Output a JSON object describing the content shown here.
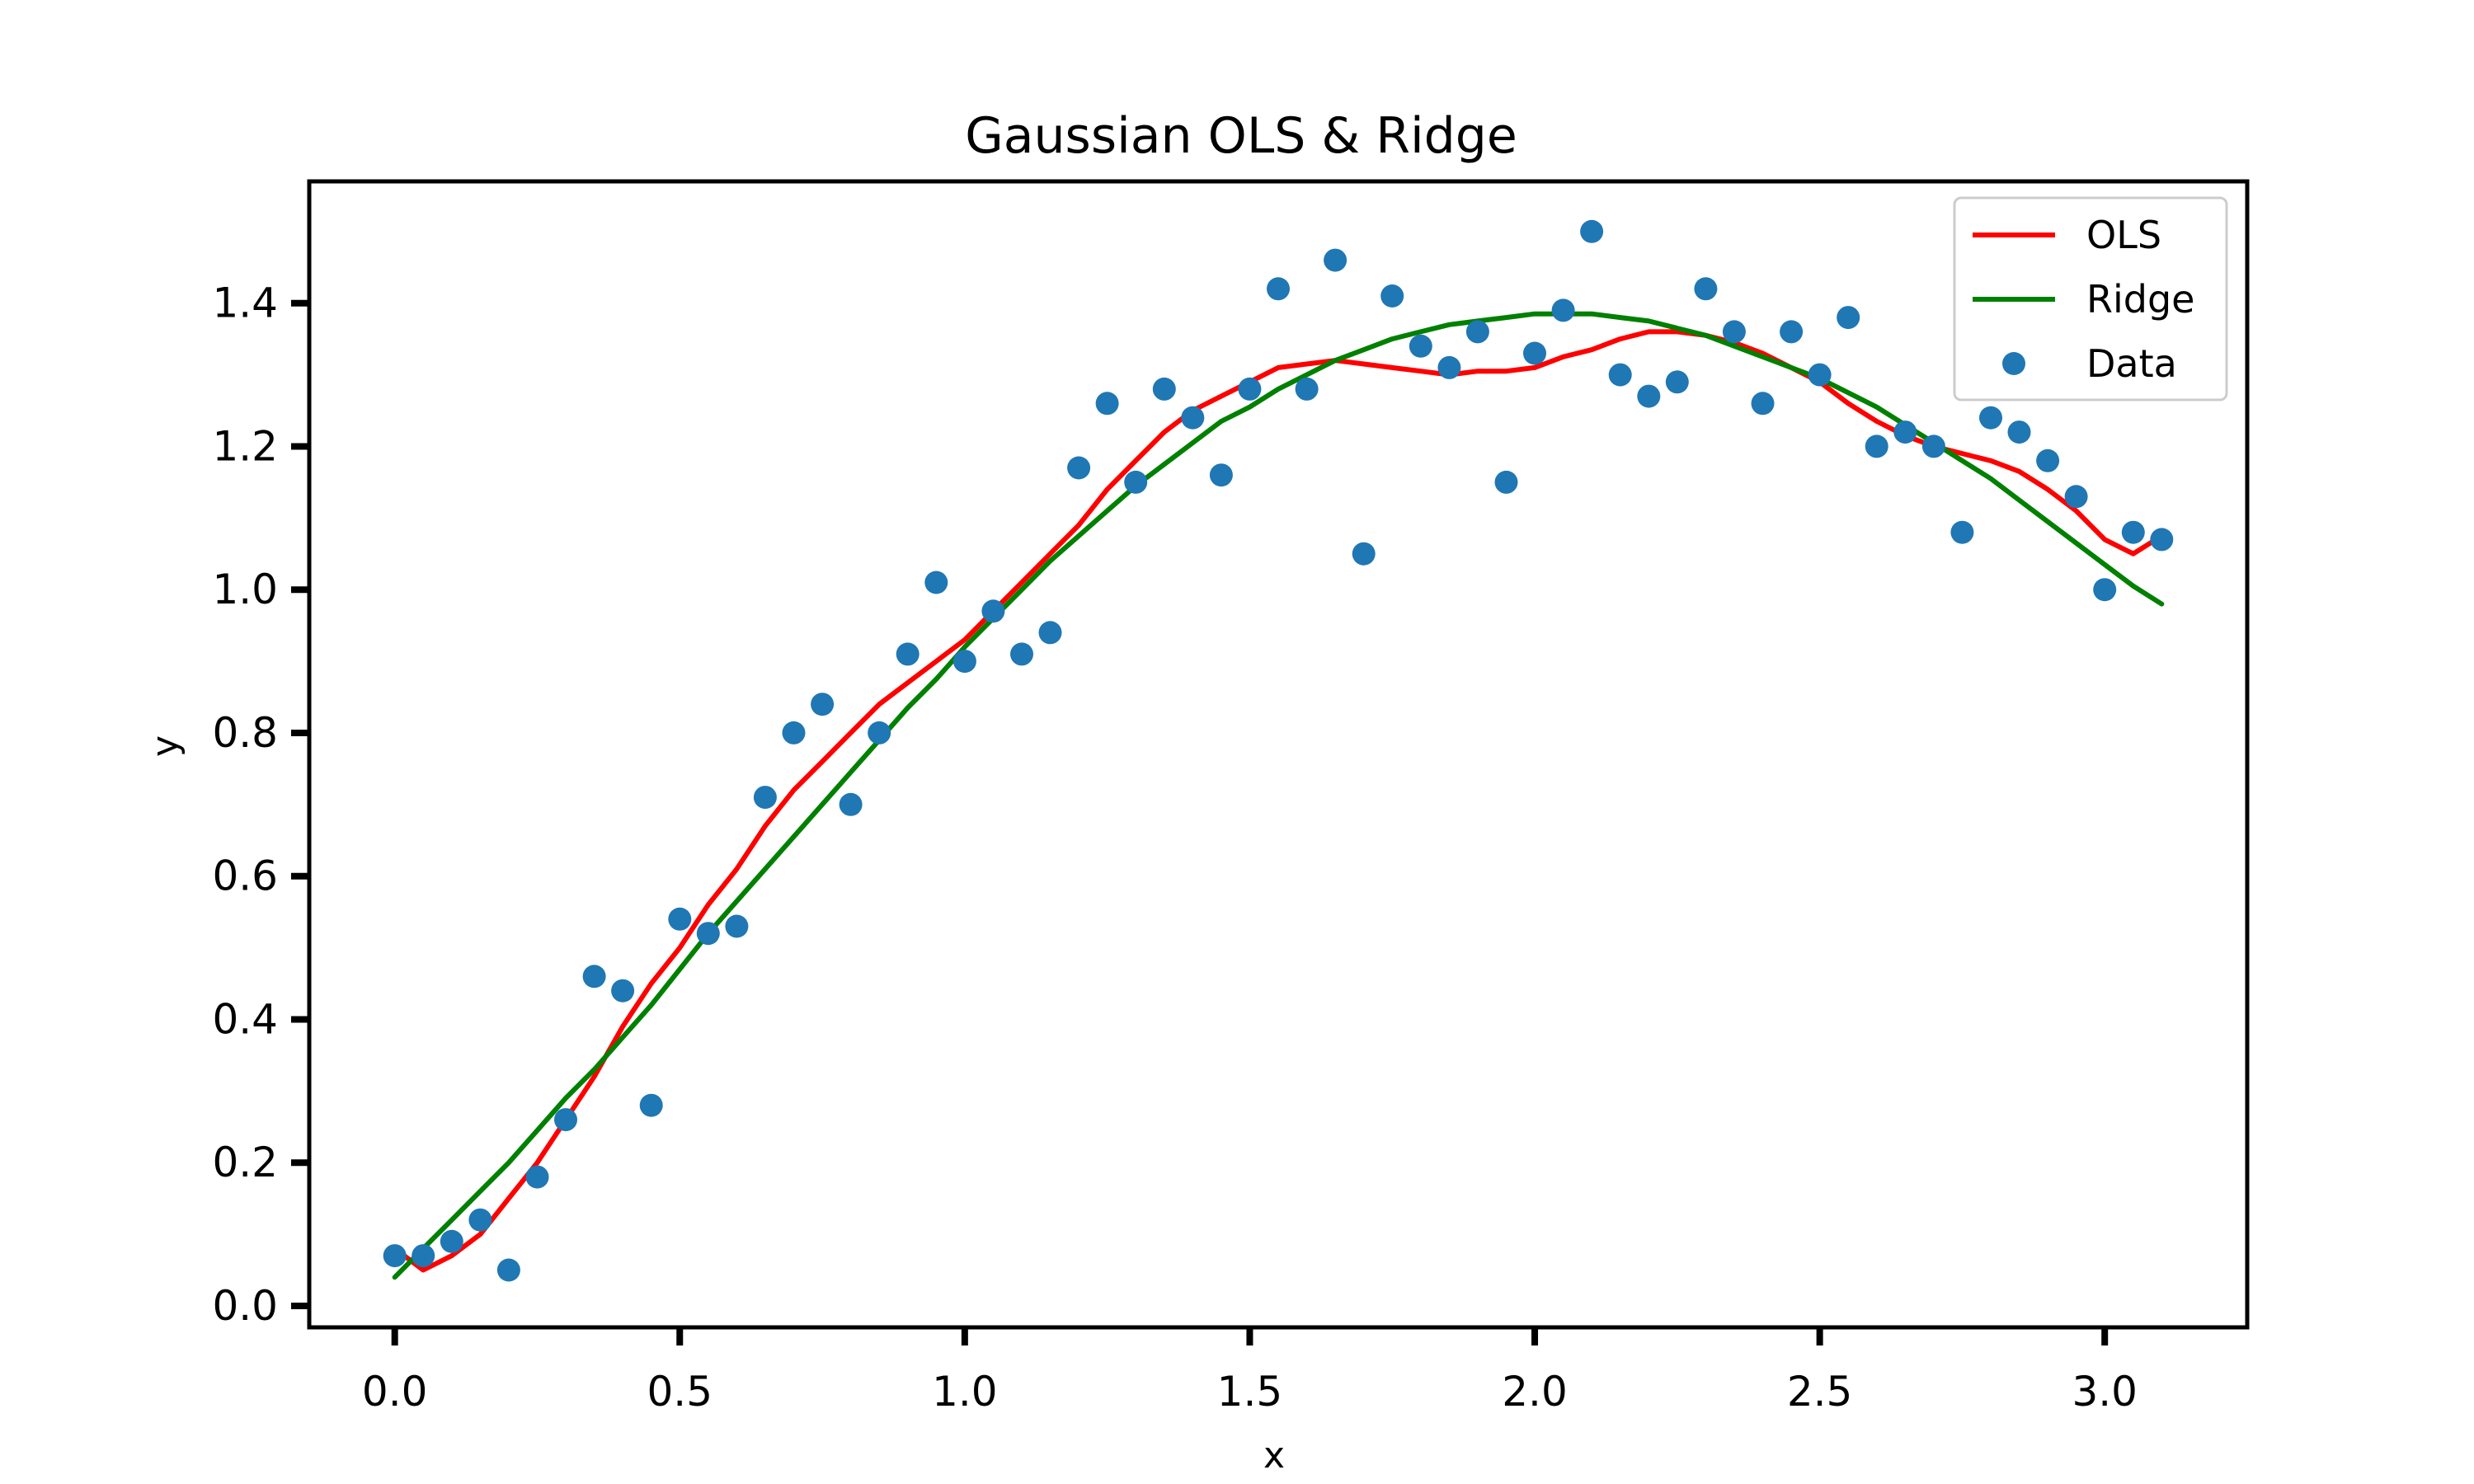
{
  "chart_data": {
    "type": "line",
    "title": "Gaussian OLS & Ridge",
    "xlabel": "x",
    "ylabel": "y",
    "xlim": [
      -0.15,
      3.25
    ],
    "ylim": [
      -0.03,
      1.57
    ],
    "xticks": [
      0.0,
      0.5,
      1.0,
      1.5,
      2.0,
      2.5,
      3.0
    ],
    "xtick_labels": [
      "0.0",
      "0.5",
      "1.0",
      "1.5",
      "2.0",
      "2.5",
      "3.0"
    ],
    "yticks": [
      0.0,
      0.2,
      0.4,
      0.6,
      0.8,
      1.0,
      1.2,
      1.4
    ],
    "ytick_labels": [
      "0.0",
      "0.2",
      "0.4",
      "0.6",
      "0.8",
      "1.0",
      "1.2",
      "1.4"
    ],
    "grid": false,
    "legend_position": "top-right",
    "series": [
      {
        "name": "OLS",
        "kind": "line",
        "color": "#ff0000",
        "x": [
          0.0,
          0.05,
          0.1,
          0.15,
          0.2,
          0.25,
          0.3,
          0.35,
          0.4,
          0.45,
          0.5,
          0.55,
          0.6,
          0.65,
          0.7,
          0.75,
          0.8,
          0.85,
          0.9,
          0.95,
          1.0,
          1.05,
          1.1,
          1.15,
          1.2,
          1.25,
          1.3,
          1.35,
          1.4,
          1.45,
          1.5,
          1.55,
          1.6,
          1.65,
          1.7,
          1.75,
          1.8,
          1.85,
          1.9,
          1.95,
          2.0,
          2.05,
          2.1,
          2.15,
          2.2,
          2.25,
          2.3,
          2.35,
          2.4,
          2.45,
          2.5,
          2.55,
          2.6,
          2.65,
          2.7,
          2.75,
          2.8,
          2.85,
          2.9,
          2.95,
          3.0,
          3.05,
          3.1
        ],
        "y": [
          0.08,
          0.05,
          0.07,
          0.1,
          0.15,
          0.2,
          0.26,
          0.32,
          0.39,
          0.45,
          0.5,
          0.56,
          0.61,
          0.67,
          0.72,
          0.76,
          0.8,
          0.84,
          0.87,
          0.9,
          0.93,
          0.97,
          1.01,
          1.05,
          1.09,
          1.14,
          1.18,
          1.22,
          1.25,
          1.27,
          1.29,
          1.31,
          1.315,
          1.32,
          1.315,
          1.31,
          1.305,
          1.3,
          1.305,
          1.305,
          1.31,
          1.325,
          1.335,
          1.35,
          1.36,
          1.36,
          1.355,
          1.345,
          1.33,
          1.31,
          1.29,
          1.26,
          1.235,
          1.215,
          1.2,
          1.19,
          1.18,
          1.165,
          1.14,
          1.11,
          1.07,
          1.05,
          1.075
        ]
      },
      {
        "name": "Ridge",
        "kind": "line",
        "color": "#008000",
        "x": [
          0.0,
          0.05,
          0.1,
          0.15,
          0.2,
          0.25,
          0.3,
          0.35,
          0.4,
          0.45,
          0.5,
          0.55,
          0.6,
          0.65,
          0.7,
          0.75,
          0.8,
          0.85,
          0.9,
          0.95,
          1.0,
          1.05,
          1.1,
          1.15,
          1.2,
          1.25,
          1.3,
          1.35,
          1.4,
          1.45,
          1.5,
          1.55,
          1.6,
          1.65,
          1.7,
          1.75,
          1.8,
          1.85,
          1.9,
          1.95,
          2.0,
          2.05,
          2.1,
          2.15,
          2.2,
          2.25,
          2.3,
          2.35,
          2.4,
          2.45,
          2.5,
          2.55,
          2.6,
          2.65,
          2.7,
          2.75,
          2.8,
          2.85,
          2.9,
          2.95,
          3.0,
          3.05,
          3.1
        ],
        "y": [
          0.04,
          0.08,
          0.12,
          0.16,
          0.2,
          0.245,
          0.29,
          0.33,
          0.375,
          0.42,
          0.47,
          0.52,
          0.565,
          0.61,
          0.655,
          0.7,
          0.745,
          0.79,
          0.835,
          0.875,
          0.92,
          0.96,
          1.0,
          1.04,
          1.075,
          1.11,
          1.145,
          1.175,
          1.205,
          1.235,
          1.255,
          1.28,
          1.3,
          1.32,
          1.335,
          1.35,
          1.36,
          1.37,
          1.375,
          1.38,
          1.385,
          1.385,
          1.385,
          1.38,
          1.375,
          1.365,
          1.355,
          1.34,
          1.325,
          1.31,
          1.295,
          1.275,
          1.255,
          1.23,
          1.205,
          1.18,
          1.155,
          1.125,
          1.095,
          1.065,
          1.035,
          1.005,
          0.98
        ]
      },
      {
        "name": "Data",
        "kind": "scatter",
        "color": "#1f77b4",
        "x": [
          0.0,
          0.05,
          0.1,
          0.15,
          0.2,
          0.25,
          0.3,
          0.35,
          0.4,
          0.45,
          0.5,
          0.55,
          0.6,
          0.65,
          0.7,
          0.75,
          0.8,
          0.85,
          0.9,
          0.95,
          1.0,
          1.05,
          1.1,
          1.15,
          1.2,
          1.25,
          1.3,
          1.35,
          1.4,
          1.45,
          1.5,
          1.55,
          1.6,
          1.65,
          1.7,
          1.75,
          1.8,
          1.85,
          1.9,
          1.95,
          2.0,
          2.05,
          2.1,
          2.15,
          2.2,
          2.25,
          2.3,
          2.35,
          2.4,
          2.45,
          2.5,
          2.55,
          2.6,
          2.65,
          2.7,
          2.75,
          2.8,
          2.85,
          2.9,
          2.95,
          3.0,
          3.05,
          3.1
        ],
        "y": [
          0.07,
          0.07,
          0.09,
          0.12,
          0.05,
          0.18,
          0.26,
          0.46,
          0.44,
          0.28,
          0.54,
          0.52,
          0.53,
          0.71,
          0.8,
          0.84,
          0.7,
          0.8,
          0.91,
          1.01,
          0.9,
          0.97,
          0.91,
          0.94,
          1.17,
          1.26,
          1.15,
          1.28,
          1.24,
          1.16,
          1.28,
          1.42,
          1.28,
          1.46,
          1.05,
          1.41,
          1.34,
          1.31,
          1.36,
          1.15,
          1.33,
          1.39,
          1.5,
          1.3,
          1.27,
          1.29,
          1.42,
          1.36,
          1.26,
          1.36,
          1.3,
          1.38,
          1.2,
          1.22,
          1.2,
          1.08,
          1.24,
          1.22,
          1.18,
          1.13,
          1.0,
          1.08,
          1.07
        ]
      }
    ]
  }
}
